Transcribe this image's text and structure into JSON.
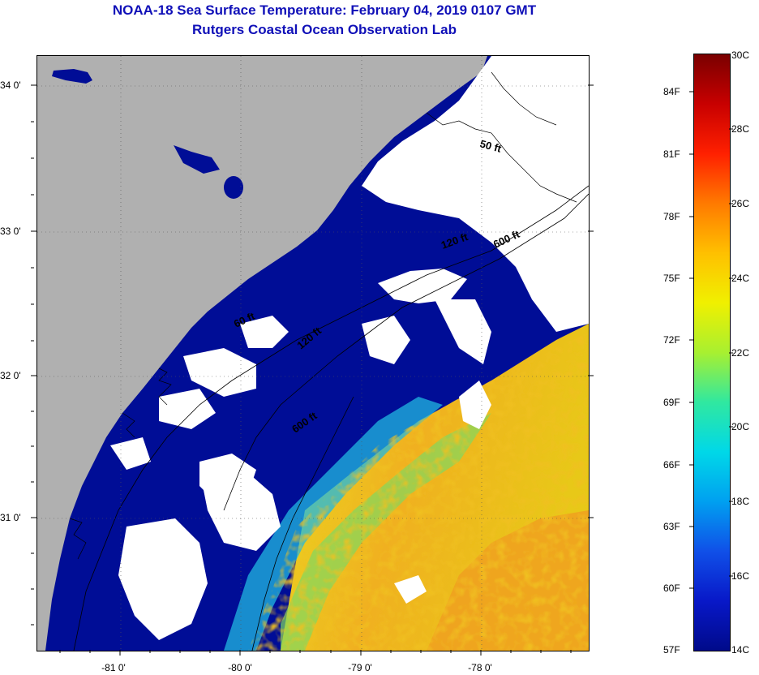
{
  "header": {
    "title_line1": "NOAA-18 Sea Surface Temperature:  February 04, 2019 0107 GMT",
    "title_line2": "Rutgers Coastal Ocean Observation Lab"
  },
  "map": {
    "lat_labels": [
      "34 0'",
      "33 0'",
      "32 0'",
      "31 0'"
    ],
    "lon_labels": [
      "-81 0'",
      "-80 0'",
      "-79 0'",
      "-78 0'"
    ],
    "contours": [
      {
        "label": "50 ft"
      },
      {
        "label": "120 ft"
      },
      {
        "label": "600 ft"
      },
      {
        "label": "60 ft"
      },
      {
        "label": "120 ft"
      },
      {
        "label": "600 ft"
      }
    ],
    "colors": {
      "land": "#b0b0b0",
      "cloud": "#ffffff",
      "cold_water": "#000d96"
    }
  },
  "colorbar": {
    "fahrenheit_labels": [
      "84F",
      "81F",
      "78F",
      "75F",
      "72F",
      "69F",
      "66F",
      "63F",
      "60F",
      "57F"
    ],
    "celsius_labels": [
      "30C",
      "28C",
      "26C",
      "24C",
      "22C",
      "20C",
      "18C",
      "16C",
      "14C"
    ],
    "colors_top_to_bottom": [
      "#7a0000",
      "#c80000",
      "#ff2000",
      "#ff7a00",
      "#ffc000",
      "#f0f000",
      "#a8f030",
      "#30e8a0",
      "#00d8e8",
      "#00a0f0",
      "#1050e8",
      "#0818c8",
      "#000a8a"
    ]
  }
}
